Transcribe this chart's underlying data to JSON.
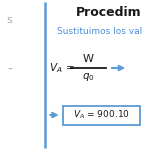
{
  "bg_color": "#ffffff",
  "title": "Procedim",
  "subtitle": "Sustituimos los val",
  "subtitle_color": "#4a90d9",
  "title_color": "#1a1a1a",
  "line_color": "#1a1a1a",
  "arrow_color": "#5b9bd5",
  "divider_color": "#5b9bd5",
  "result_box_color": "#5b9bd5",
  "left_s": "s",
  "left_dash": "-",
  "left_color": "#aaaaaa"
}
